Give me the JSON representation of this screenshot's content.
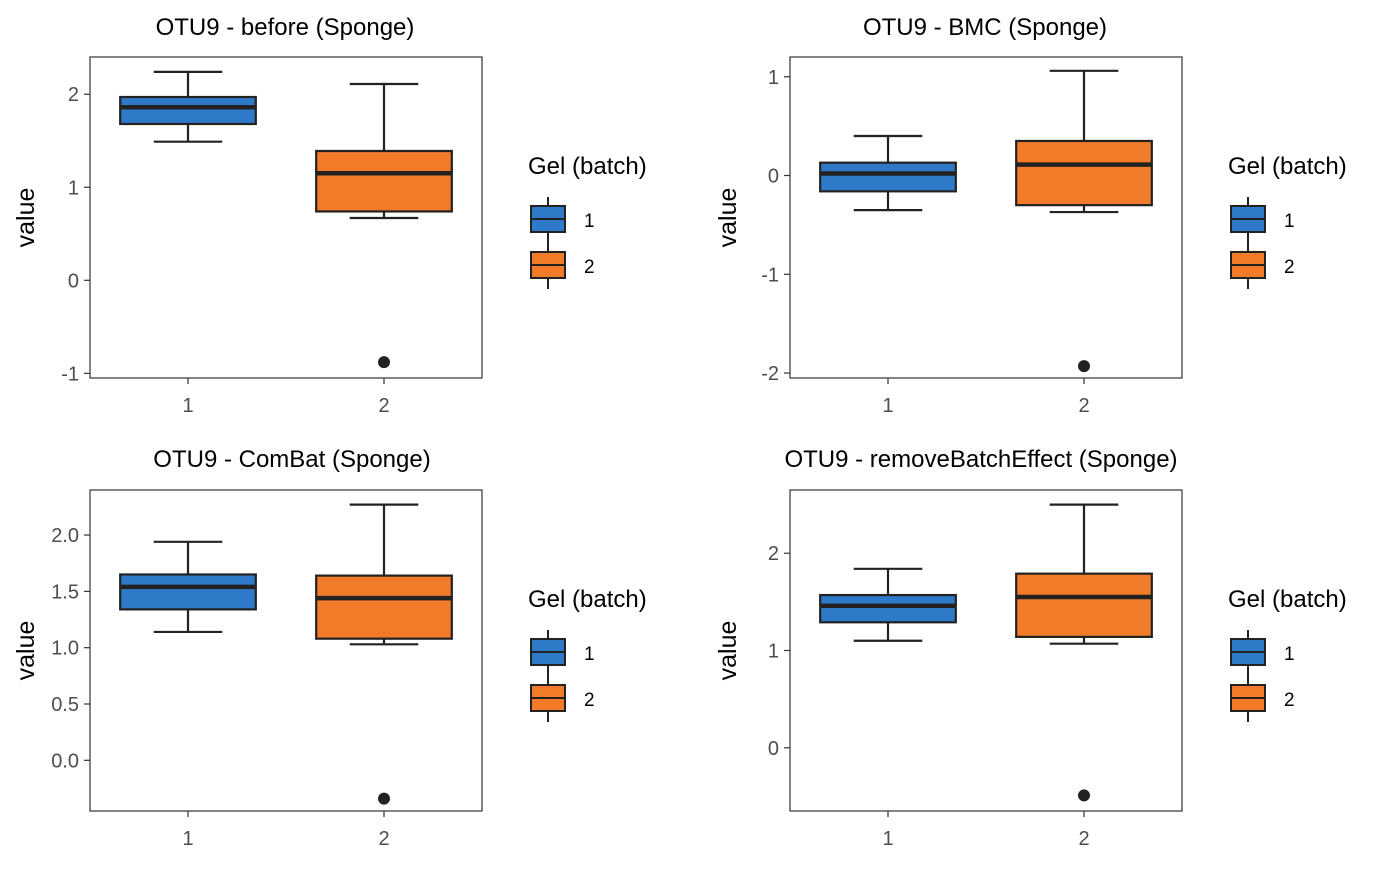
{
  "legend": {
    "title": "Gel (batch)",
    "items": [
      {
        "label": "1",
        "color": "#2f7ac8"
      },
      {
        "label": "2",
        "color": "#f27b2a"
      }
    ]
  },
  "chart_data": [
    {
      "type": "boxplot",
      "title": "OTU9 - before (Sponge)",
      "xlabel": "",
      "ylabel": "value",
      "categories": [
        "1",
        "2"
      ],
      "ylim": [
        -1.05,
        2.4
      ],
      "yticks": [
        -1,
        0,
        1,
        2
      ],
      "boxes": [
        {
          "x": "1",
          "min": 1.49,
          "q1": 1.68,
          "median": 1.86,
          "q3": 1.97,
          "max": 2.24,
          "outliers": []
        },
        {
          "x": "2",
          "min": 0.67,
          "q1": 0.74,
          "median": 1.15,
          "q3": 1.39,
          "max": 2.11,
          "outliers": [
            -0.88
          ]
        }
      ]
    },
    {
      "type": "boxplot",
      "title": "OTU9 - BMC (Sponge)",
      "xlabel": "",
      "ylabel": "value",
      "categories": [
        "1",
        "2"
      ],
      "ylim": [
        -2.05,
        1.2
      ],
      "yticks": [
        -2,
        -1,
        0,
        1
      ],
      "boxes": [
        {
          "x": "1",
          "min": -0.35,
          "q1": -0.16,
          "median": 0.02,
          "q3": 0.13,
          "max": 0.4,
          "outliers": []
        },
        {
          "x": "2",
          "min": -0.37,
          "q1": -0.3,
          "median": 0.11,
          "q3": 0.35,
          "max": 1.06,
          "outliers": [
            -1.93
          ]
        }
      ]
    },
    {
      "type": "boxplot",
      "title": "OTU9 - ComBat (Sponge)",
      "xlabel": "",
      "ylabel": "value",
      "categories": [
        "1",
        "2"
      ],
      "ylim": [
        -0.45,
        2.4
      ],
      "yticks": [
        0.0,
        0.5,
        1.0,
        1.5,
        2.0
      ],
      "ytick_labels": [
        "0.0",
        "0.5",
        "1.0",
        "1.5",
        "2.0"
      ],
      "boxes": [
        {
          "x": "1",
          "min": 1.14,
          "q1": 1.34,
          "median": 1.54,
          "q3": 1.65,
          "max": 1.94,
          "outliers": []
        },
        {
          "x": "2",
          "min": 1.03,
          "q1": 1.08,
          "median": 1.44,
          "q3": 1.64,
          "max": 2.27,
          "outliers": [
            -0.34
          ]
        }
      ]
    },
    {
      "type": "boxplot",
      "title": "OTU9 - removeBatchEffect (Sponge)",
      "xlabel": "",
      "ylabel": "value",
      "categories": [
        "1",
        "2"
      ],
      "ylim": [
        -0.65,
        2.65
      ],
      "yticks": [
        0,
        1,
        2
      ],
      "boxes": [
        {
          "x": "1",
          "min": 1.1,
          "q1": 1.29,
          "median": 1.46,
          "q3": 1.57,
          "max": 1.84,
          "outliers": []
        },
        {
          "x": "2",
          "min": 1.07,
          "q1": 1.14,
          "median": 1.55,
          "q3": 1.79,
          "max": 2.5,
          "outliers": [
            -0.49
          ]
        }
      ]
    }
  ]
}
